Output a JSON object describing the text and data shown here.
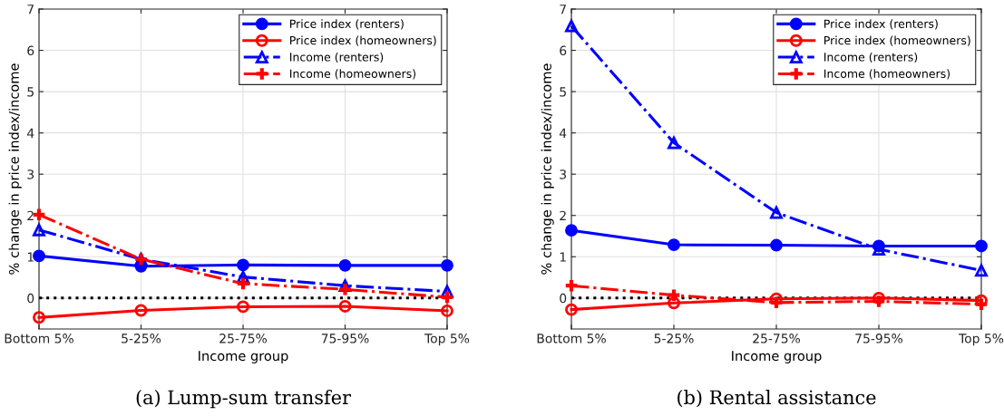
{
  "chart_data": [
    {
      "type": "line",
      "title": "(a) Lump-sum transfer",
      "xlabel": "Income group",
      "ylabel": "% change in price index/income",
      "categories": [
        "Bottom 5%",
        "5-25%",
        "25-75%",
        "75-95%",
        "Top 5%"
      ],
      "ylim": [
        -0.75,
        7
      ],
      "yticks": [
        0,
        1,
        2,
        3,
        4,
        5,
        6,
        7
      ],
      "grid": true,
      "legend": "top right",
      "ref_lines": [
        {
          "axis": "y",
          "value": 0,
          "color": "#000000",
          "line_style": "dotted"
        }
      ],
      "series": [
        {
          "name": "Price index (renters)",
          "color": "#0000ff",
          "marker": "circle_filled",
          "line_style": "solid",
          "values": [
            1.02,
            0.77,
            0.8,
            0.79,
            0.79
          ]
        },
        {
          "name": "Price index (homeowners)",
          "color": "#ff0000",
          "marker": "circle",
          "line_style": "solid",
          "values": [
            -0.47,
            -0.3,
            -0.21,
            -0.2,
            -0.31
          ]
        },
        {
          "name": "Income (renters)",
          "color": "#0000ff",
          "marker": "triangle",
          "line_style": "dashdot",
          "values": [
            1.65,
            0.94,
            0.51,
            0.3,
            0.16
          ]
        },
        {
          "name": "Income (homeowners)",
          "color": "#ff0000",
          "marker": "cross",
          "line_style": "dashdot",
          "values": [
            2.02,
            0.94,
            0.35,
            0.21,
            0.02
          ]
        }
      ]
    },
    {
      "type": "line",
      "title": "(b) Rental assistance",
      "xlabel": "Income group",
      "ylabel": "% change in price index/income",
      "categories": [
        "Bottom 5%",
        "5-25%",
        "25-75%",
        "75-95%",
        "Top 5%"
      ],
      "ylim": [
        -0.75,
        7
      ],
      "yticks": [
        0,
        1,
        2,
        3,
        4,
        5,
        6,
        7
      ],
      "grid": true,
      "legend": "top right",
      "ref_lines": [
        {
          "axis": "y",
          "value": 0,
          "color": "#000000",
          "line_style": "dotted"
        }
      ],
      "series": [
        {
          "name": "Price index (renters)",
          "color": "#0000ff",
          "marker": "circle_filled",
          "line_style": "solid",
          "values": [
            1.64,
            1.29,
            1.28,
            1.26,
            1.26
          ]
        },
        {
          "name": "Price index (homeowners)",
          "color": "#ff0000",
          "marker": "circle",
          "line_style": "solid",
          "values": [
            -0.28,
            -0.12,
            -0.02,
            0.0,
            -0.06
          ]
        },
        {
          "name": "Income (renters)",
          "color": "#0000ff",
          "marker": "triangle",
          "line_style": "dashdot",
          "values": [
            6.59,
            3.76,
            2.07,
            1.18,
            0.67
          ]
        },
        {
          "name": "Income (homeowners)",
          "color": "#ff0000",
          "marker": "cross",
          "line_style": "dashdot",
          "values": [
            0.3,
            0.07,
            -0.11,
            -0.08,
            -0.15
          ]
        }
      ]
    }
  ]
}
